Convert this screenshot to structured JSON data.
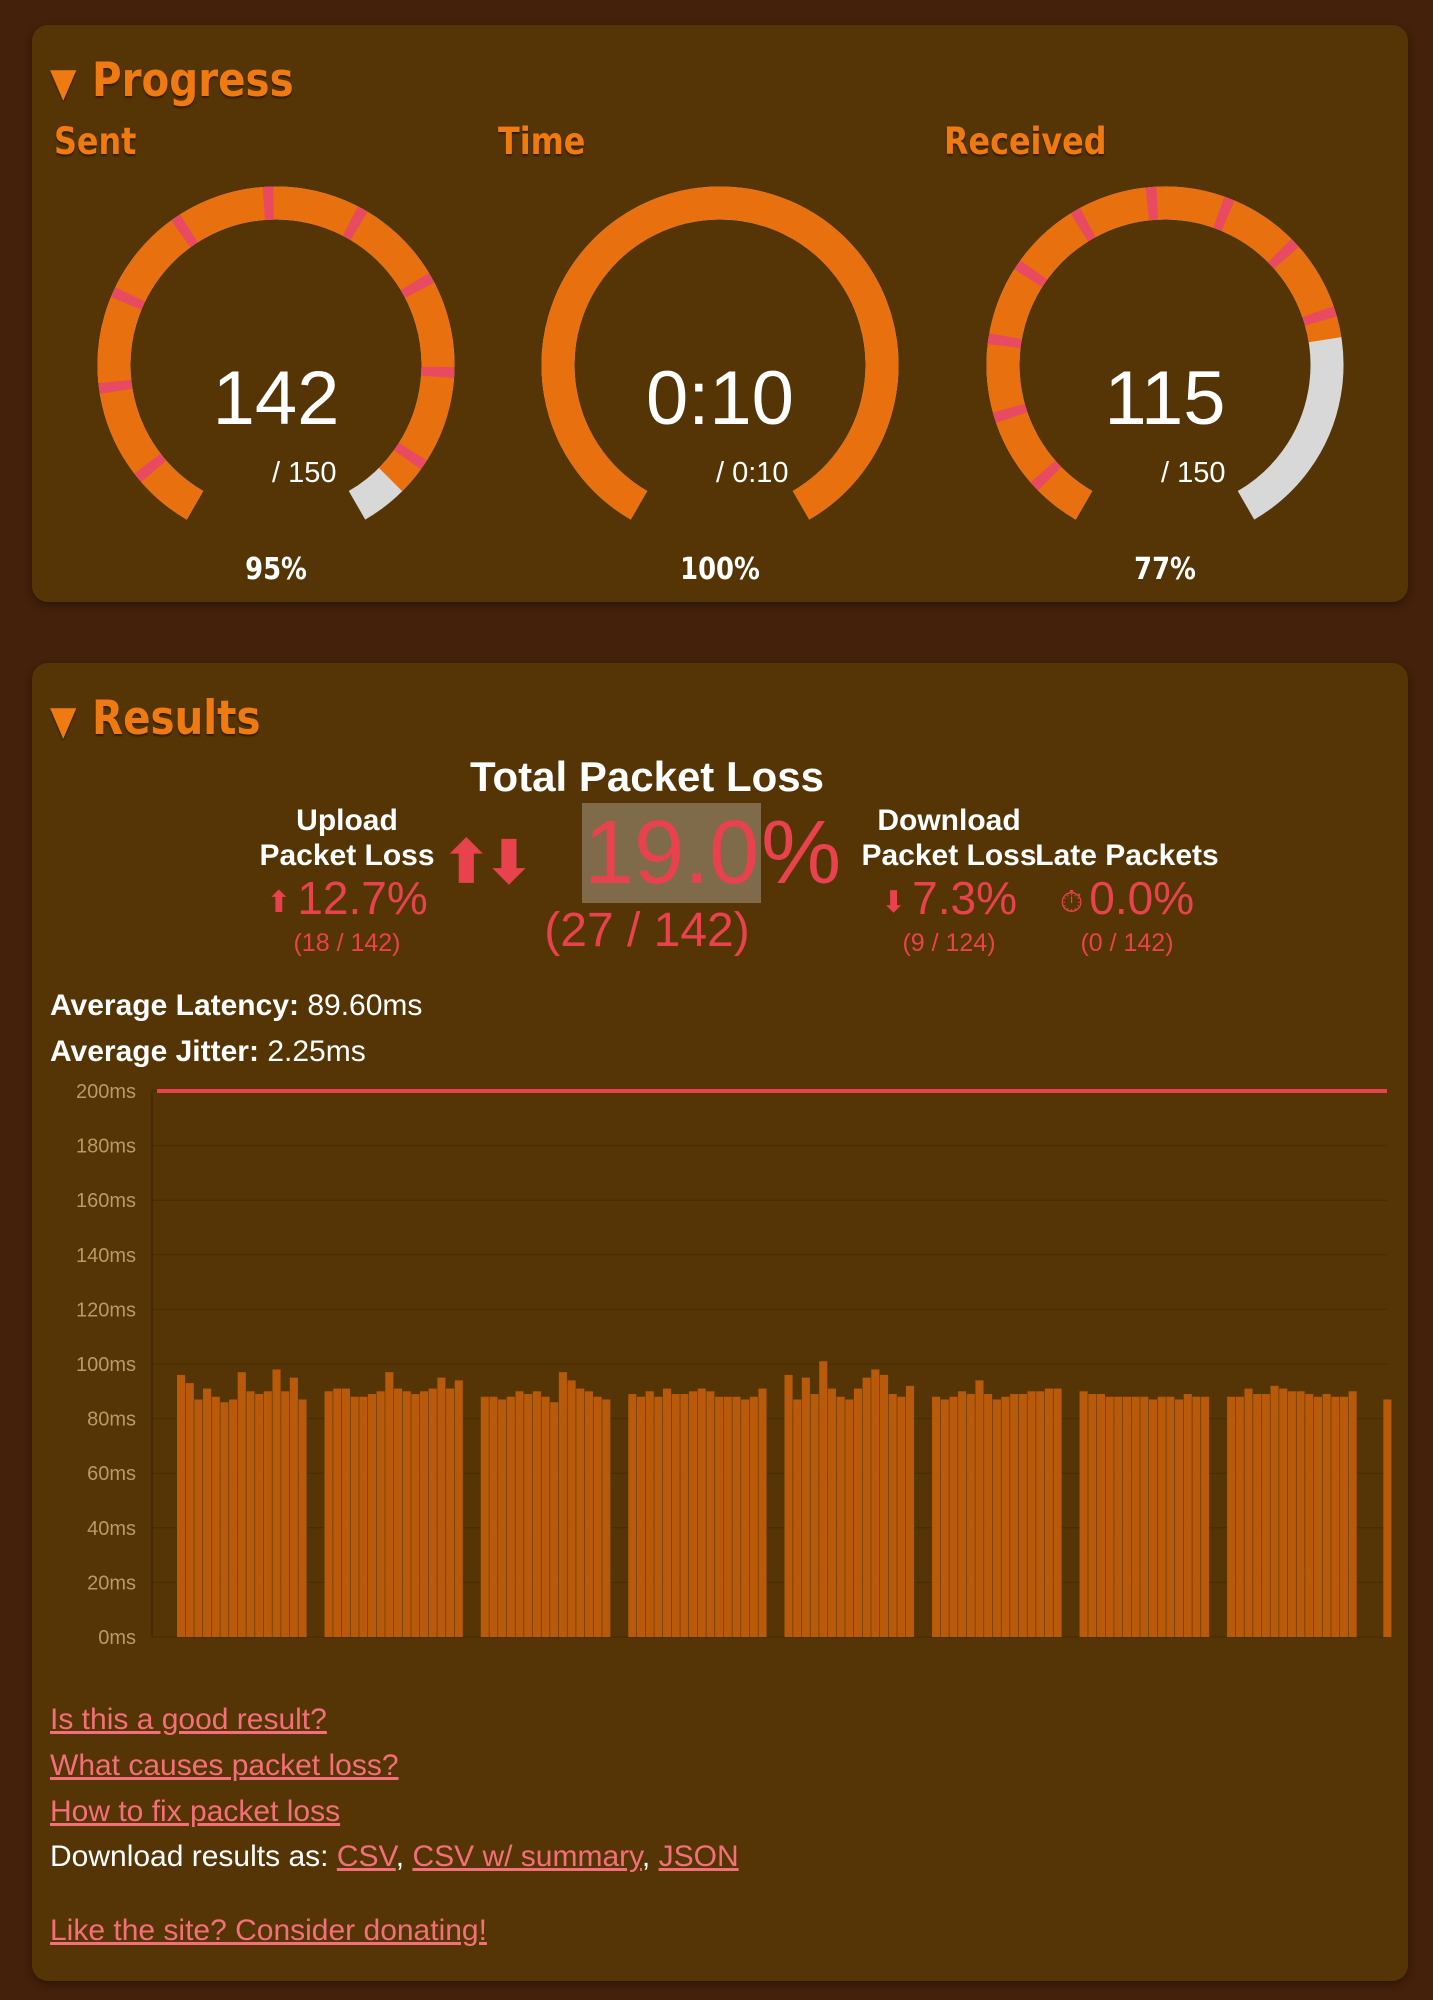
{
  "progress": {
    "title": "Progress",
    "gauges": [
      {
        "label": "Sent",
        "value": "142",
        "sub": "/ 150",
        "pct": "95%",
        "fraction": 0.95,
        "segmented": true
      },
      {
        "label": "Time",
        "value": "0:10",
        "sub": "/ 0:10",
        "pct": "100%",
        "fraction": 1.0,
        "segmented": false
      },
      {
        "label": "Received",
        "value": "115",
        "sub": "/ 150",
        "pct": "77%",
        "fraction": 0.77,
        "segmented": true
      }
    ]
  },
  "results": {
    "title": "Results",
    "total": {
      "label": "Total Packet Loss",
      "arrows": "⬆⬇",
      "value_hl": "19.0",
      "value_pct": "%",
      "frac": "(27 / 142)"
    },
    "upload": {
      "label_line1": "Upload",
      "label_line2": "Packet Loss",
      "arrow": "⬆",
      "value": "12.7%",
      "frac": "(18 / 142)"
    },
    "download": {
      "label_line1": "Download",
      "label_line2": "Packet Loss",
      "arrow": "⬇",
      "value": "7.3%",
      "frac": "(9 / 124)"
    },
    "late": {
      "label": "Late Packets",
      "icon": "⏱",
      "value": "0.0%",
      "frac": "(0 / 142)"
    },
    "latency": {
      "label": "Average Latency:",
      "value": "89.60ms"
    },
    "jitter": {
      "label": "Average Jitter:",
      "value": "2.25ms"
    },
    "links": {
      "good_result": "Is this a good result?",
      "causes": "What causes packet loss?",
      "fix": "How to fix packet loss",
      "download_label": "Download results as:",
      "csv": "CSV",
      "csv_summary": "CSV w/ summary",
      "json": "JSON",
      "sep1": ",",
      "sep2": ",",
      "donate": "Like the site? Consider donating!"
    }
  },
  "colors": {
    "accent": "#f07a12",
    "loss": "#e8424f",
    "bar": "#b85a0a",
    "gauge_track": "#d8d8d8",
    "gauge_fill": "#e8700f",
    "gauge_lost": "#e84a62"
  },
  "chart_data": {
    "type": "bar",
    "ylabel": "",
    "yticks": [
      "0ms",
      "20ms",
      "40ms",
      "60ms",
      "80ms",
      "100ms",
      "120ms",
      "140ms",
      "160ms",
      "180ms",
      "200ms"
    ],
    "ylim": [
      0,
      200
    ],
    "threshold": 200,
    "values": [
      96,
      93,
      87,
      91,
      88,
      86,
      87,
      97,
      90,
      89,
      90,
      98,
      90,
      95,
      87,
      0,
      0,
      90,
      91,
      91,
      88,
      88,
      89,
      90,
      97,
      91,
      90,
      89,
      90,
      91,
      95,
      91,
      94,
      0,
      0,
      88,
      88,
      87,
      88,
      90,
      89,
      90,
      88,
      86,
      97,
      94,
      91,
      90,
      88,
      87,
      0,
      0,
      89,
      88,
      90,
      88,
      91,
      89,
      89,
      90,
      91,
      90,
      88,
      88,
      88,
      87,
      88,
      91,
      0,
      0,
      96,
      87,
      95,
      89,
      101,
      91,
      88,
      87,
      91,
      95,
      98,
      96,
      89,
      88,
      92,
      0,
      0,
      88,
      87,
      88,
      90,
      89,
      94,
      89,
      87,
      88,
      89,
      89,
      90,
      90,
      91,
      91,
      0,
      0,
      90,
      89,
      89,
      88,
      88,
      88,
      88,
      88,
      87,
      88,
      88,
      87,
      89,
      88,
      88,
      0,
      0,
      88,
      88,
      91,
      89,
      89,
      92,
      91,
      90,
      90,
      89,
      88,
      89,
      88,
      88,
      90,
      0,
      0,
      0,
      87
    ]
  }
}
